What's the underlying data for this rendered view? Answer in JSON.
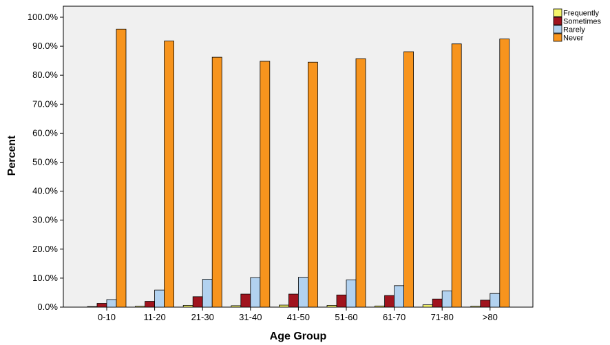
{
  "chart_data": {
    "type": "bar",
    "title": "",
    "xlabel": "Age Group",
    "ylabel": "Percent",
    "ylim": [
      0,
      100
    ],
    "yticks": [
      0,
      10,
      20,
      30,
      40,
      50,
      60,
      70,
      80,
      90,
      100
    ],
    "ytick_labels": [
      "0.0%",
      "10.0%",
      "20.0%",
      "30.0%",
      "40.0%",
      "50.0%",
      "60.0%",
      "70.0%",
      "80.0%",
      "90.0%",
      "100.0%"
    ],
    "grid": false,
    "legend_position": "top-right",
    "categories": [
      "0-10",
      "11-20",
      "21-30",
      "31-40",
      "41-50",
      "51-60",
      "61-70",
      "71-80",
      ">80"
    ],
    "series": [
      {
        "name": "Frequently",
        "color": "#f5f56b",
        "values": [
          0.2,
          0.3,
          0.6,
          0.5,
          0.7,
          0.6,
          0.4,
          0.8,
          0.3
        ]
      },
      {
        "name": "Sometimes",
        "color": "#a0141e",
        "values": [
          1.3,
          2.0,
          3.6,
          4.5,
          4.5,
          4.2,
          4.0,
          2.8,
          2.4
        ]
      },
      {
        "name": "Rarely",
        "color": "#b2d2f0",
        "values": [
          2.6,
          5.9,
          9.6,
          10.2,
          10.3,
          9.4,
          7.4,
          5.6,
          4.7
        ]
      },
      {
        "name": "Never",
        "color": "#f7941d",
        "values": [
          95.9,
          91.8,
          86.2,
          84.8,
          84.5,
          85.7,
          88.1,
          90.8,
          92.5
        ]
      }
    ]
  }
}
